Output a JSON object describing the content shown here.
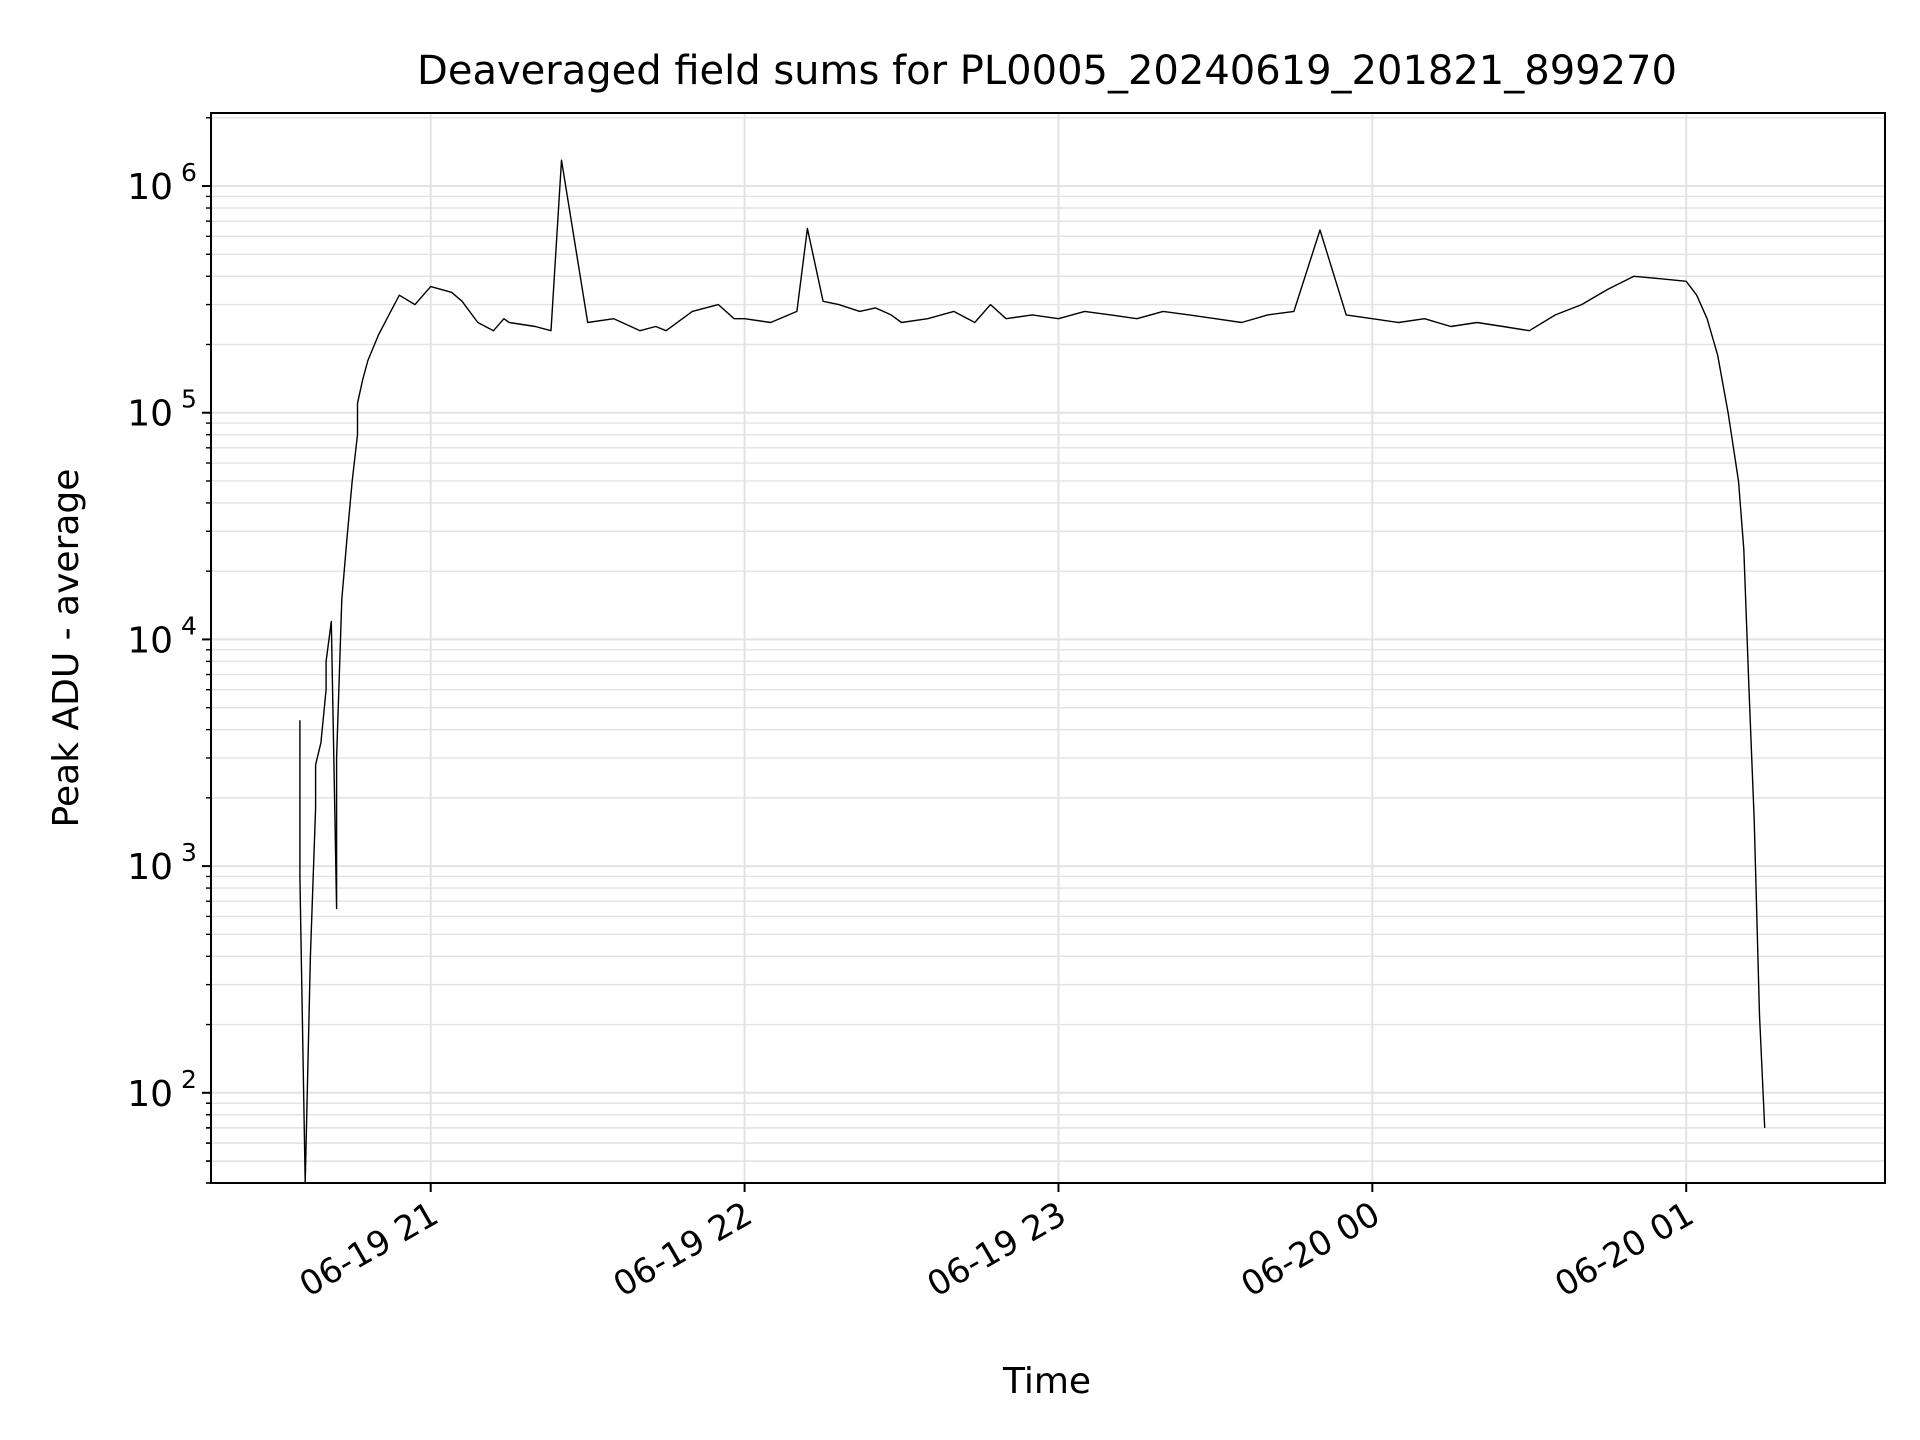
{
  "chart_data": {
    "type": "line",
    "title": "Deaveraged field sums for PL0005_20240619_201821_899270",
    "xlabel": "Time",
    "ylabel": "Peak ADU - average",
    "y_scale": "log",
    "ylim": [
      40,
      2100000
    ],
    "xlim": [
      "2024-06-19 20:18",
      "2024-06-20 01:38"
    ],
    "grid": "major and minor",
    "line_color": "#000000",
    "grid_color": "#e3e3e3",
    "x_ticks": [
      {
        "value": "2024-06-19 21:00",
        "label": "06-19 21"
      },
      {
        "value": "2024-06-19 22:00",
        "label": "06-19 22"
      },
      {
        "value": "2024-06-19 23:00",
        "label": "06-19 23"
      },
      {
        "value": "2024-06-20 00:00",
        "label": "06-20 00"
      },
      {
        "value": "2024-06-20 01:00",
        "label": "06-20 01"
      }
    ],
    "y_ticks": [
      {
        "value": 100,
        "base": "10",
        "exp": "2"
      },
      {
        "value": 1000,
        "base": "10",
        "exp": "3"
      },
      {
        "value": 10000,
        "base": "10",
        "exp": "4"
      },
      {
        "value": 100000,
        "base": "10",
        "exp": "5"
      },
      {
        "value": 1000000,
        "base": "10",
        "exp": "6"
      }
    ],
    "series": [
      {
        "x": [
          "2024-06-19 20:35",
          "2024-06-19 20:35",
          "2024-06-19 20:36",
          "2024-06-19 20:37",
          "2024-06-19 20:38",
          "2024-06-19 20:38",
          "2024-06-19 20:39",
          "2024-06-19 20:40",
          "2024-06-19 20:40",
          "2024-06-19 20:41",
          "2024-06-19 20:42",
          "2024-06-19 20:42",
          "2024-06-19 20:43",
          "2024-06-19 20:44",
          "2024-06-19 20:45",
          "2024-06-19 20:46",
          "2024-06-19 20:46",
          "2024-06-19 20:47",
          "2024-06-19 20:48",
          "2024-06-19 20:50",
          "2024-06-19 20:52",
          "2024-06-19 20:54",
          "2024-06-19 20:57",
          "2024-06-19 21:00",
          "2024-06-19 21:04",
          "2024-06-19 21:06",
          "2024-06-19 21:09",
          "2024-06-19 21:12",
          "2024-06-19 21:14",
          "2024-06-19 21:15",
          "2024-06-19 21:20",
          "2024-06-19 21:23",
          "2024-06-19 21:25",
          "2024-06-19 21:30",
          "2024-06-19 21:35",
          "2024-06-19 21:40",
          "2024-06-19 21:43",
          "2024-06-19 21:45",
          "2024-06-19 21:50",
          "2024-06-19 21:55",
          "2024-06-19 21:58",
          "2024-06-19 22:00",
          "2024-06-19 22:05",
          "2024-06-19 22:10",
          "2024-06-19 22:12",
          "2024-06-19 22:15",
          "2024-06-19 22:18",
          "2024-06-19 22:22",
          "2024-06-19 22:25",
          "2024-06-19 22:28",
          "2024-06-19 22:30",
          "2024-06-19 22:35",
          "2024-06-19 22:40",
          "2024-06-19 22:44",
          "2024-06-19 22:47",
          "2024-06-19 22:50",
          "2024-06-19 22:55",
          "2024-06-19 23:00",
          "2024-06-19 23:05",
          "2024-06-19 23:10",
          "2024-06-19 23:15",
          "2024-06-19 23:20",
          "2024-06-19 23:25",
          "2024-06-19 23:30",
          "2024-06-19 23:35",
          "2024-06-19 23:40",
          "2024-06-19 23:45",
          "2024-06-19 23:50",
          "2024-06-19 23:55",
          "2024-06-20 00:00",
          "2024-06-20 00:05",
          "2024-06-20 00:10",
          "2024-06-20 00:15",
          "2024-06-20 00:20",
          "2024-06-20 00:25",
          "2024-06-20 00:30",
          "2024-06-20 00:35",
          "2024-06-20 00:40",
          "2024-06-20 00:45",
          "2024-06-20 00:50",
          "2024-06-20 00:55",
          "2024-06-20 01:00",
          "2024-06-20 01:02",
          "2024-06-20 01:04",
          "2024-06-20 01:06",
          "2024-06-20 01:08",
          "2024-06-20 01:10",
          "2024-06-20 01:11",
          "2024-06-20 01:12",
          "2024-06-20 01:13",
          "2024-06-20 01:14",
          "2024-06-20 01:15"
        ],
        "y": [
          4400,
          900,
          40,
          400,
          1800,
          2800,
          3500,
          6000,
          8000,
          12000,
          650,
          3000,
          15000,
          28000,
          50000,
          80000,
          110000,
          140000,
          170000,
          220000,
          270000,
          330000,
          300000,
          360000,
          340000,
          310000,
          250000,
          230000,
          260000,
          250000,
          240000,
          230000,
          1300000,
          250000,
          260000,
          230000,
          240000,
          230000,
          280000,
          300000,
          260000,
          260000,
          250000,
          280000,
          650000,
          310000,
          300000,
          280000,
          290000,
          270000,
          250000,
          260000,
          280000,
          250000,
          300000,
          260000,
          270000,
          260000,
          280000,
          270000,
          260000,
          280000,
          270000,
          260000,
          250000,
          270000,
          280000,
          640000,
          270000,
          260000,
          250000,
          260000,
          240000,
          250000,
          240000,
          230000,
          270000,
          300000,
          350000,
          400000,
          390000,
          380000,
          330000,
          260000,
          180000,
          100000,
          50000,
          25000,
          6000,
          1600,
          220,
          70
        ]
      }
    ]
  }
}
